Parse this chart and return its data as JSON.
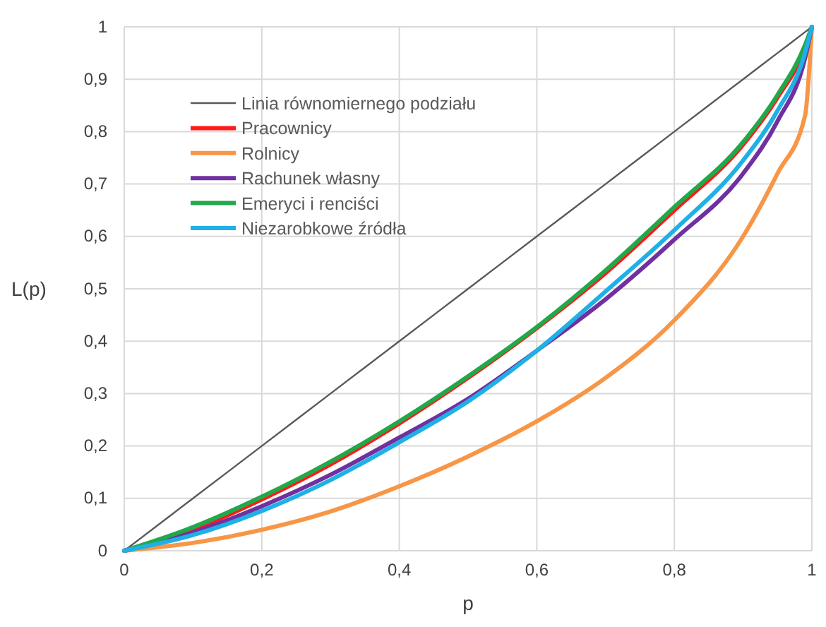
{
  "chart_data": {
    "type": "line",
    "xlabel": "p",
    "ylabel": "L(p)",
    "x": [
      0,
      0.1,
      0.2,
      0.3,
      0.4,
      0.5,
      0.6,
      0.7,
      0.8,
      0.9,
      0.95,
      0.99,
      1
    ],
    "xlim": [
      0,
      1
    ],
    "ylim": [
      0,
      1
    ],
    "xticks": [
      0,
      {
        "value": 0.2,
        "label": "0,2"
      },
      {
        "value": 0.4,
        "label": "0,4"
      },
      {
        "value": 0.6,
        "label": "0,6"
      },
      {
        "value": 0.8,
        "label": "0,8"
      },
      1
    ],
    "yticks": [
      0,
      {
        "value": 0.1,
        "label": "0,1"
      },
      {
        "value": 0.2,
        "label": "0,2"
      },
      {
        "value": 0.3,
        "label": "0,3"
      },
      {
        "value": 0.4,
        "label": "0,4"
      },
      {
        "value": 0.5,
        "label": "0,5"
      },
      {
        "value": 0.6,
        "label": "0,6"
      },
      {
        "value": 0.7,
        "label": "0,7"
      },
      {
        "value": 0.8,
        "label": "0,8"
      },
      {
        "value": 0.9,
        "label": "0,9"
      },
      1
    ],
    "grid": true,
    "legend": "top left",
    "marker": "none",
    "line_style": "solid",
    "series": [
      {
        "name": "Linia równomiernego podziału",
        "color": "#595959",
        "values": [
          0,
          0.1,
          0.2,
          0.3,
          0.4,
          0.5,
          0.6,
          0.7,
          0.8,
          0.9,
          0.95,
          0.99,
          1
        ]
      },
      {
        "name": "Pracownicy",
        "color": "#ff1a1a",
        "values": [
          0,
          0.04,
          0.098,
          0.165,
          0.243,
          0.33,
          0.425,
          0.53,
          0.65,
          0.775,
          0.865,
          0.96,
          1
        ]
      },
      {
        "name": "Rolnicy",
        "color": "#f79646",
        "values": [
          0,
          0.015,
          0.04,
          0.075,
          0.123,
          0.18,
          0.247,
          0.33,
          0.44,
          0.6,
          0.72,
          0.83,
          1
        ]
      },
      {
        "name": "Rachunek własny",
        "color": "#7030a0",
        "values": [
          0,
          0.035,
          0.085,
          0.145,
          0.216,
          0.29,
          0.382,
          0.48,
          0.594,
          0.72,
          0.82,
          0.94,
          1
        ]
      },
      {
        "name": "Emeryci i renciści",
        "color": "#21a84a",
        "values": [
          0,
          0.045,
          0.103,
          0.17,
          0.247,
          0.333,
          0.427,
          0.535,
          0.656,
          0.78,
          0.87,
          0.965,
          1
        ]
      },
      {
        "name": "Niezarobkowe źródła",
        "color": "#1fb0e6",
        "values": [
          0,
          0.03,
          0.076,
          0.135,
          0.207,
          0.285,
          0.382,
          0.495,
          0.612,
          0.745,
          0.84,
          0.95,
          1
        ]
      }
    ]
  }
}
